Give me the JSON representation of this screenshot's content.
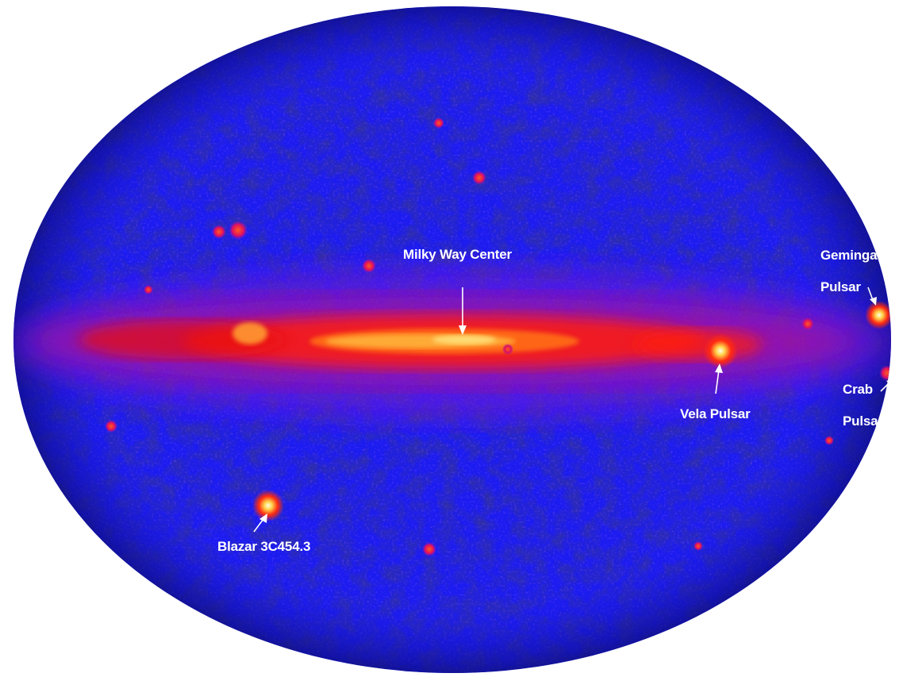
{
  "labels": {
    "milky_way_center": "Milky Way Center",
    "geminga_line1": "Geminga",
    "geminga_line2": "Pulsar",
    "vela_pulsar": "Vela Pulsar",
    "crab_line1": "Crab",
    "crab_line2": "Pulsar",
    "blazar": "Blazar 3C454.3"
  },
  "colors": {
    "sky_background": "#1c1cf0",
    "sky_dark": "#0a0a6e",
    "galactic_plane": "#ff2a10",
    "bright_core": "#fff2a0",
    "label": "#ffffff",
    "page_background": "#ffffff"
  }
}
